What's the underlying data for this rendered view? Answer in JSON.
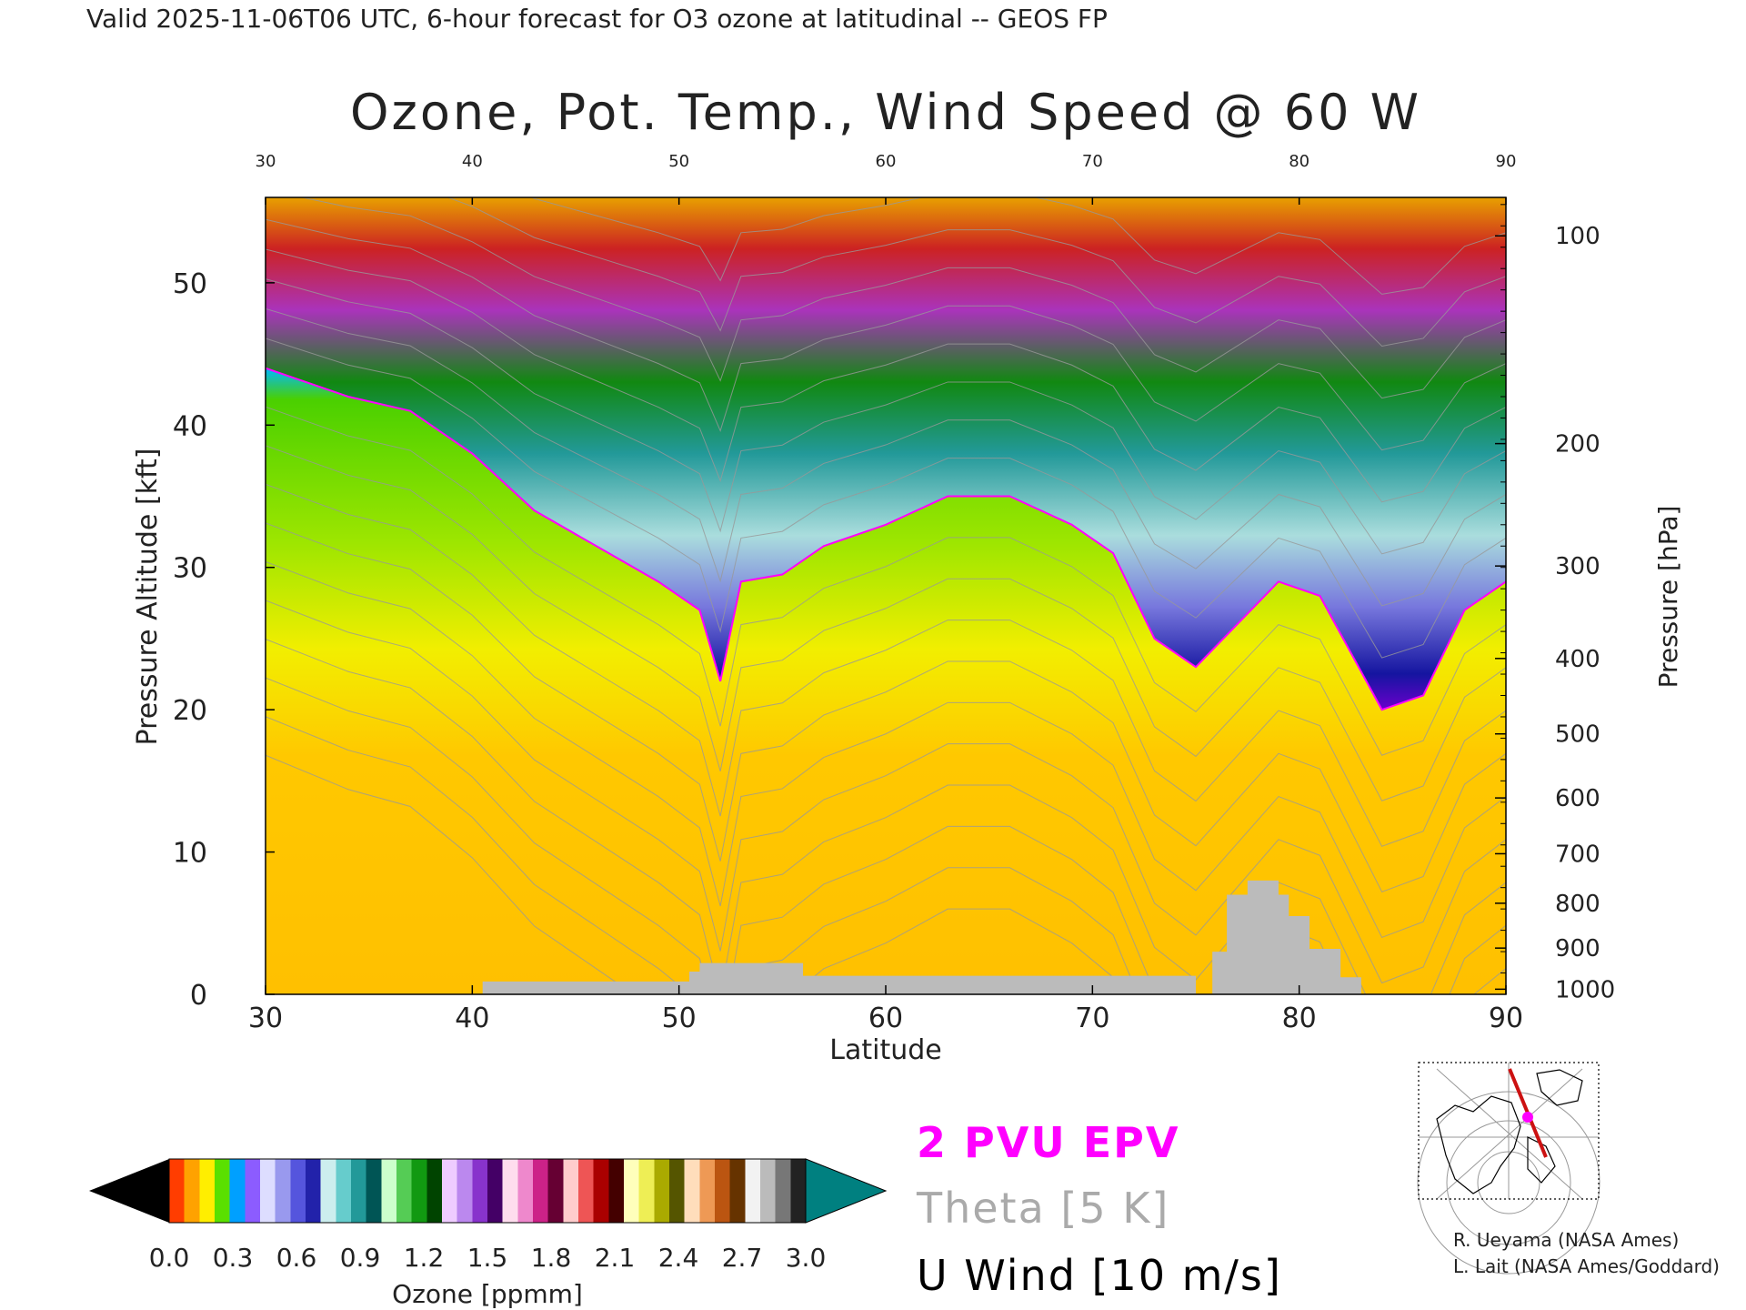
{
  "header": {
    "valid_line": "Valid 2025-11-06T06 UTC, 6-hour forecast for O3 ozone at latitudinal -- GEOS FP"
  },
  "chart_data": {
    "type": "heatmap",
    "title": "Ozone, Pot. Temp., Wind Speed @ 60 W",
    "xlabel": "Latitude",
    "ylabel": "Pressure Altitude [kft]",
    "y2label": "Pressure [hPa]",
    "xlim": [
      30,
      90
    ],
    "ylim": [
      0,
      56
    ],
    "x_ticks": [
      "30",
      "40",
      "50",
      "60",
      "70",
      "80",
      "90"
    ],
    "top_x_ticks": [
      "30",
      "40",
      "50",
      "60",
      "70",
      "80",
      "90"
    ],
    "y_ticks": [
      "0",
      "10",
      "20",
      "30",
      "40",
      "50"
    ],
    "pressure_ticks": [
      {
        "label": "1000",
        "kft": 0.36
      },
      {
        "label": "900",
        "kft": 3.25
      },
      {
        "label": "800",
        "kft": 6.4
      },
      {
        "label": "700",
        "kft": 9.88
      },
      {
        "label": "600",
        "kft": 13.8
      },
      {
        "label": "500",
        "kft": 18.3
      },
      {
        "label": "400",
        "kft": 23.6
      },
      {
        "label": "300",
        "kft": 30.1
      },
      {
        "label": "200",
        "kft": 38.7
      },
      {
        "label": "100",
        "kft": 53.3
      }
    ],
    "tropopause_kft": [
      [
        30,
        44
      ],
      [
        34,
        42
      ],
      [
        37,
        41
      ],
      [
        40,
        38
      ],
      [
        43,
        34
      ],
      [
        46,
        31.5
      ],
      [
        49,
        29
      ],
      [
        51,
        27
      ],
      [
        52,
        22
      ],
      [
        53,
        29
      ],
      [
        55,
        29.5
      ],
      [
        57,
        31.5
      ],
      [
        60,
        33
      ],
      [
        63,
        35
      ],
      [
        66,
        35
      ],
      [
        69,
        33
      ],
      [
        71,
        31
      ],
      [
        73,
        25
      ],
      [
        75,
        23
      ],
      [
        77,
        26
      ],
      [
        79,
        29
      ],
      [
        81,
        28
      ],
      [
        82.5,
        24
      ],
      [
        84,
        20
      ],
      [
        86,
        21
      ],
      [
        88,
        27
      ],
      [
        90,
        29
      ]
    ],
    "ozone_colorbar": {
      "label": "Ozone [ppmm]",
      "range": [
        0.0,
        3.0
      ],
      "tick_labels": [
        "0.0",
        "0.3",
        "0.6",
        "0.9",
        "1.2",
        "1.5",
        "1.8",
        "2.1",
        "2.4",
        "2.7",
        "3.0"
      ],
      "colors": [
        "#ff3d00",
        "#ffa200",
        "#ffee00",
        "#5ae000",
        "#00a0ff",
        "#8c5cff",
        "#ddddff",
        "#9999ee",
        "#5555dd",
        "#2222aa",
        "#cceeee",
        "#66cccc",
        "#229999",
        "#005555",
        "#ccffcc",
        "#55cc55",
        "#119911",
        "#004400",
        "#eeccff",
        "#bb88ee",
        "#8833cc",
        "#440066",
        "#ffddee",
        "#ee88cc",
        "#cc2288",
        "#660033",
        "#ffcccc",
        "#ee5555",
        "#aa0000",
        "#440000",
        "#ffffbb",
        "#eeee55",
        "#aaaa00",
        "#555500",
        "#ffddbb",
        "#ee9955",
        "#bb5511",
        "#663300",
        "#f2f2f2",
        "#bbbbbb",
        "#777777",
        "#222222"
      ],
      "under_color": "#000000",
      "over_color": "#008080"
    },
    "legend": [
      {
        "text": "2 PVU EPV",
        "color": "#ff00ff"
      },
      {
        "text": "Theta [5 K]",
        "color": "#aaaaaa"
      },
      {
        "text": "U Wind [10 m/s]",
        "color": "#000000"
      }
    ],
    "terrain_color": "#bbbbbb",
    "tropopause_color": "#ff00ff"
  },
  "credits": [
    "R. Ueyama (NASA Ames)",
    "L. Lait (NASA Ames/Goddard)"
  ]
}
